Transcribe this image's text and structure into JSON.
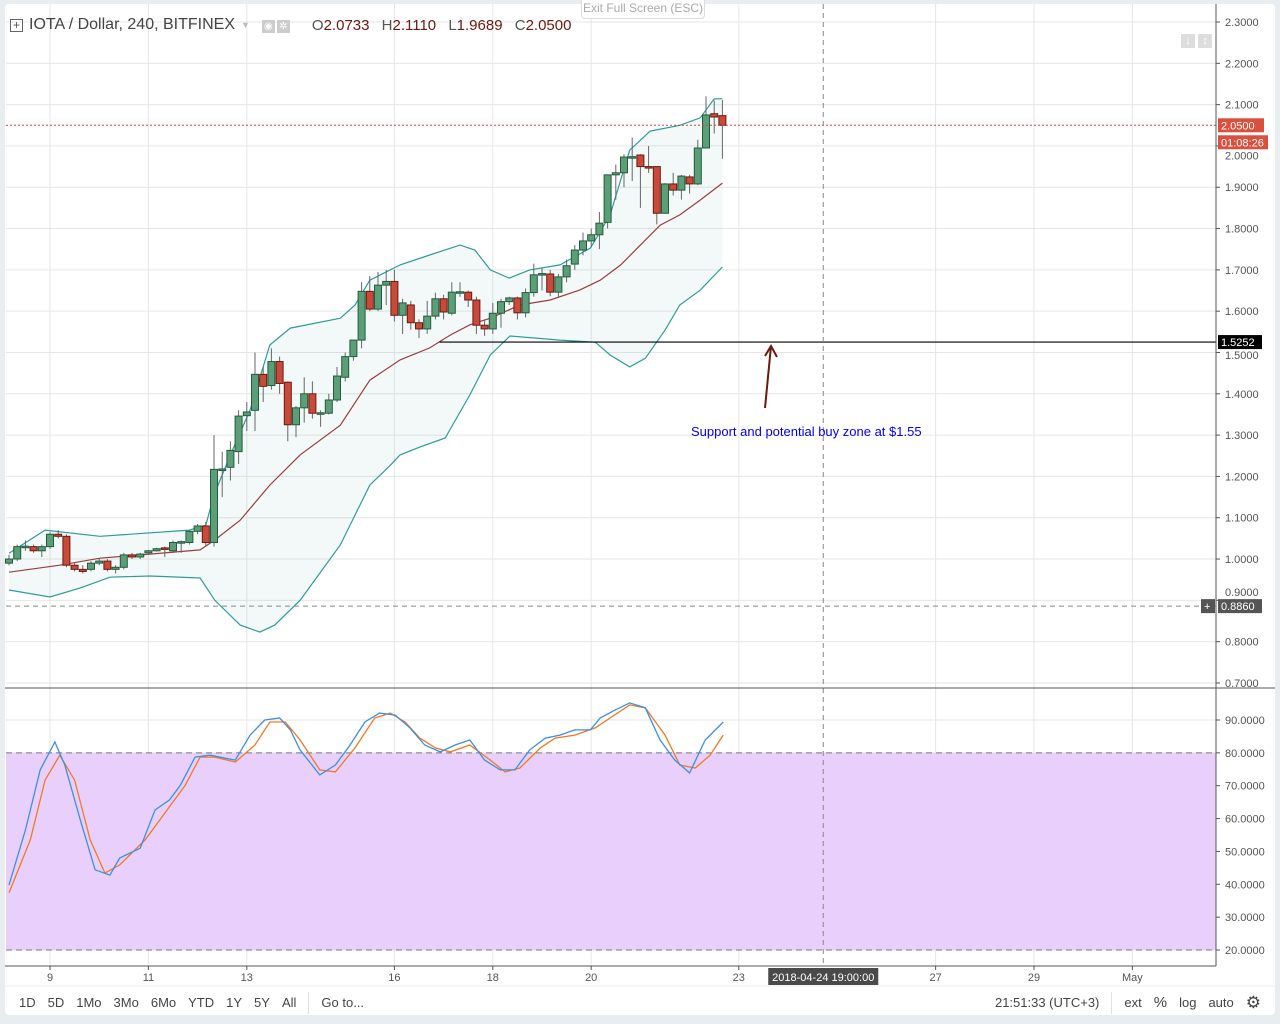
{
  "header": {
    "symbol": "IOTA / Dollar, 240, BITFINEX",
    "o_label": "O",
    "o": "2.0733",
    "h_label": "H",
    "h": "2.1110",
    "l_label": "L",
    "l": "1.9689",
    "c_label": "C",
    "c": "2.0500"
  },
  "exit_fullscreen": "Exit Full Screen (ESC)",
  "annotation": "Support and potential buy zone at $1.55",
  "price_labels": {
    "last": "2.0500",
    "countdown": "01:08:26",
    "support": "1.5252",
    "crosshair": "0.8860",
    "crosshair_plus": "+"
  },
  "colors": {
    "up": "#5b9e77",
    "down": "#c94a3a",
    "band": "#2e9c9a",
    "basis": "#9b3d3d",
    "stoch_k": "#3d8ee8",
    "stoch_d": "#f07a20",
    "stoch_fill": "#e9d0fc",
    "annotation": "#0000ff",
    "arrow": "#6b1a10"
  },
  "toolbar": {
    "ranges": [
      "1D",
      "5D",
      "1Mo",
      "3Mo",
      "6Mo",
      "YTD",
      "1Y",
      "5Y",
      "All"
    ],
    "goto": "Go to...",
    "clock": "21:51:33 (UTC+3)",
    "ext": "ext",
    "percent": "%",
    "log": "log",
    "auto": "auto"
  },
  "chart_data": {
    "type": "candlestick",
    "title": "IOTA / Dollar, 240, BITFINEX",
    "ylim": [
      0.7,
      2.3
    ],
    "y_ticks": [
      "2.3000",
      "2.2000",
      "2.1000",
      "2.0000",
      "1.9000",
      "1.8000",
      "1.7000",
      "1.6000",
      "1.5000",
      "1.4000",
      "1.3000",
      "1.2000",
      "1.1000",
      "1.0000",
      "0.9000",
      "0.8000",
      "0.7000"
    ],
    "x_ticks": [
      {
        "bar": 5,
        "label": "9"
      },
      {
        "bar": 17,
        "label": "11"
      },
      {
        "bar": 29,
        "label": "13"
      },
      {
        "bar": 47,
        "label": "16"
      },
      {
        "bar": 59,
        "label": "18"
      },
      {
        "bar": 71,
        "label": "20"
      },
      {
        "bar": 89,
        "label": "23"
      },
      {
        "bar": 113,
        "label": "27"
      },
      {
        "bar": 125,
        "label": "29"
      },
      {
        "bar": 137,
        "label": "May"
      }
    ],
    "crosshair": {
      "bar": 99.3,
      "price": 0.886,
      "date_label": "2018-04-24 19:00:00"
    },
    "support_line": {
      "price": 1.5252,
      "from_bar": 52.5
    },
    "ohlc": [
      [
        0.99,
        1.01,
        0.985,
        1.0
      ],
      [
        1.0,
        1.035,
        0.995,
        1.03
      ],
      [
        1.03,
        1.045,
        1.02,
        1.031
      ],
      [
        1.03,
        1.035,
        1.015,
        1.02
      ],
      [
        1.02,
        1.035,
        1.005,
        1.03
      ],
      [
        1.03,
        1.065,
        1.025,
        1.06
      ],
      [
        1.06,
        1.07,
        1.05,
        1.055
      ],
      [
        1.055,
        1.06,
        0.98,
        0.985
      ],
      [
        0.985,
        0.99,
        0.97,
        0.975
      ],
      [
        0.975,
        0.985,
        0.965,
        0.97
      ],
      [
        0.975,
        0.995,
        0.97,
        0.99
      ],
      [
        0.99,
        1.0,
        0.985,
        0.995
      ],
      [
        0.995,
        1.0,
        0.97,
        0.975
      ],
      [
        0.975,
        0.985,
        0.965,
        0.98
      ],
      [
        0.98,
        1.015,
        0.975,
        1.01
      ],
      [
        1.01,
        1.015,
        1.0,
        1.005
      ],
      [
        1.005,
        1.015,
        1.0,
        1.012
      ],
      [
        1.015,
        1.022,
        1.01,
        1.02
      ],
      [
        1.02,
        1.027,
        1.018,
        1.025
      ],
      [
        1.027,
        1.03,
        1.005,
        1.025
      ],
      [
        1.02,
        1.045,
        1.015,
        1.04
      ],
      [
        1.04,
        1.045,
        1.015,
        1.042
      ],
      [
        1.04,
        1.07,
        1.035,
        1.067
      ],
      [
        1.067,
        1.085,
        1.06,
        1.08
      ],
      [
        1.08,
        1.09,
        1.03,
        1.04
      ],
      [
        1.04,
        1.3,
        1.03,
        1.217
      ],
      [
        1.218,
        1.26,
        1.15,
        1.218
      ],
      [
        1.222,
        1.285,
        1.19,
        1.263
      ],
      [
        1.26,
        1.36,
        1.23,
        1.346
      ],
      [
        1.347,
        1.38,
        1.31,
        1.356
      ],
      [
        1.36,
        1.5,
        1.31,
        1.447
      ],
      [
        1.447,
        1.465,
        1.38,
        1.418
      ],
      [
        1.42,
        1.51,
        1.41,
        1.478
      ],
      [
        1.478,
        1.49,
        1.4,
        1.425
      ],
      [
        1.428,
        1.43,
        1.285,
        1.325
      ],
      [
        1.325,
        1.37,
        1.295,
        1.366
      ],
      [
        1.366,
        1.44,
        1.33,
        1.4
      ],
      [
        1.4,
        1.43,
        1.34,
        1.353
      ],
      [
        1.353,
        1.36,
        1.32,
        1.354
      ],
      [
        1.353,
        1.4,
        1.35,
        1.385
      ],
      [
        1.385,
        1.465,
        1.38,
        1.443
      ],
      [
        1.44,
        1.5,
        1.43,
        1.49
      ],
      [
        1.49,
        1.53,
        1.48,
        1.53
      ],
      [
        1.53,
        1.67,
        1.51,
        1.648
      ],
      [
        1.648,
        1.685,
        1.6,
        1.605
      ],
      [
        1.605,
        1.695,
        1.6,
        1.663
      ],
      [
        1.663,
        1.7,
        1.615,
        1.672
      ],
      [
        1.672,
        1.7,
        1.575,
        1.59
      ],
      [
        1.59,
        1.63,
        1.545,
        1.62
      ],
      [
        1.615,
        1.625,
        1.555,
        1.572
      ],
      [
        1.572,
        1.58,
        1.535,
        1.557
      ],
      [
        1.557,
        1.625,
        1.545,
        1.588
      ],
      [
        1.588,
        1.645,
        1.58,
        1.63
      ],
      [
        1.63,
        1.64,
        1.58,
        1.598
      ],
      [
        1.595,
        1.67,
        1.59,
        1.646
      ],
      [
        1.646,
        1.67,
        1.635,
        1.647
      ],
      [
        1.646,
        1.65,
        1.61,
        1.627
      ],
      [
        1.627,
        1.635,
        1.545,
        1.566
      ],
      [
        1.566,
        1.58,
        1.54,
        1.557
      ],
      [
        1.557,
        1.62,
        1.545,
        1.595
      ],
      [
        1.595,
        1.63,
        1.56,
        1.623
      ],
      [
        1.623,
        1.635,
        1.615,
        1.632
      ],
      [
        1.632,
        1.635,
        1.58,
        1.596
      ],
      [
        1.596,
        1.655,
        1.585,
        1.645
      ],
      [
        1.645,
        1.715,
        1.635,
        1.688
      ],
      [
        1.69,
        1.705,
        1.65,
        1.691
      ],
      [
        1.69,
        1.7,
        1.636,
        1.646
      ],
      [
        1.646,
        1.69,
        1.635,
        1.683
      ],
      [
        1.683,
        1.725,
        1.67,
        1.71
      ],
      [
        1.714,
        1.76,
        1.7,
        1.748
      ],
      [
        1.748,
        1.79,
        1.735,
        1.77
      ],
      [
        1.77,
        1.8,
        1.755,
        1.785
      ],
      [
        1.785,
        1.84,
        1.75,
        1.813
      ],
      [
        1.815,
        1.93,
        1.8,
        1.93
      ],
      [
        1.93,
        1.955,
        1.87,
        1.935
      ],
      [
        1.935,
        1.98,
        1.9,
        1.973
      ],
      [
        1.973,
        2.02,
        1.915,
        1.974
      ],
      [
        1.978,
        1.98,
        1.85,
        1.95
      ],
      [
        1.95,
        2.0,
        1.935,
        1.949
      ],
      [
        1.95,
        1.95,
        1.81,
        1.837
      ],
      [
        1.837,
        1.91,
        1.837,
        1.908
      ],
      [
        1.908,
        1.935,
        1.88,
        1.893
      ],
      [
        1.893,
        1.93,
        1.87,
        1.927
      ],
      [
        1.925,
        1.93,
        1.885,
        1.908
      ],
      [
        1.908,
        2.015,
        1.905,
        1.995
      ],
      [
        1.995,
        2.12,
        1.995,
        2.075
      ],
      [
        2.078,
        2.11,
        2.03,
        2.07
      ],
      [
        2.0733,
        2.111,
        1.9689,
        2.05
      ]
    ],
    "bollinger": {
      "upper": [
        [
          0,
          1.014
        ],
        [
          4.4,
          1.07
        ],
        [
          11.1,
          1.055
        ],
        [
          22,
          1.07
        ],
        [
          24,
          1.082
        ],
        [
          25,
          1.155
        ],
        [
          27,
          1.252
        ],
        [
          29.4,
          1.361
        ],
        [
          31.8,
          1.518
        ],
        [
          34.3,
          1.559
        ],
        [
          40.4,
          1.583
        ],
        [
          42.2,
          1.615
        ],
        [
          44,
          1.675
        ],
        [
          47.7,
          1.712
        ],
        [
          51.3,
          1.736
        ],
        [
          55,
          1.76
        ],
        [
          56.8,
          1.748
        ],
        [
          58.7,
          1.7
        ],
        [
          61,
          1.68
        ],
        [
          63.5,
          1.7
        ],
        [
          67.2,
          1.712
        ],
        [
          70.9,
          1.753
        ],
        [
          73.3,
          1.833
        ],
        [
          75.7,
          1.99
        ],
        [
          78.2,
          2.036
        ],
        [
          81.8,
          2.05
        ],
        [
          84.3,
          2.068
        ],
        [
          86,
          2.114
        ],
        [
          87,
          2.114
        ]
      ],
      "basis": [
        [
          0,
          0.968
        ],
        [
          6.2,
          0.985
        ],
        [
          11.1,
          1.002
        ],
        [
          17.2,
          1.012
        ],
        [
          23.3,
          1.022
        ],
        [
          25.1,
          1.046
        ],
        [
          28.2,
          1.094
        ],
        [
          31.8,
          1.179
        ],
        [
          35.5,
          1.252
        ],
        [
          40.4,
          1.324
        ],
        [
          44,
          1.433
        ],
        [
          47.7,
          1.482
        ],
        [
          51.3,
          1.511
        ],
        [
          53.8,
          1.542
        ],
        [
          56.2,
          1.567
        ],
        [
          58.7,
          1.583
        ],
        [
          62.3,
          1.615
        ],
        [
          66,
          1.627
        ],
        [
          69.6,
          1.651
        ],
        [
          72.1,
          1.675
        ],
        [
          74.6,
          1.712
        ],
        [
          77,
          1.76
        ],
        [
          79.4,
          1.808
        ],
        [
          81.8,
          1.833
        ],
        [
          84.3,
          1.869
        ],
        [
          87,
          1.91
        ]
      ],
      "lower": [
        [
          0,
          0.925
        ],
        [
          5,
          0.908
        ],
        [
          8.7,
          0.93
        ],
        [
          12.3,
          0.956
        ],
        [
          17.2,
          0.959
        ],
        [
          23.3,
          0.954
        ],
        [
          25.1,
          0.9
        ],
        [
          28.2,
          0.84
        ],
        [
          30.6,
          0.823
        ],
        [
          32.4,
          0.84
        ],
        [
          35.5,
          0.9
        ],
        [
          40.4,
          1.034
        ],
        [
          44,
          1.179
        ],
        [
          46.5,
          1.227
        ],
        [
          47.7,
          1.252
        ],
        [
          50.1,
          1.271
        ],
        [
          53.2,
          1.293
        ],
        [
          56.2,
          1.397
        ],
        [
          58.7,
          1.494
        ],
        [
          61.1,
          1.54
        ],
        [
          67.2,
          1.53
        ],
        [
          71.5,
          1.525
        ],
        [
          73.3,
          1.494
        ],
        [
          75.7,
          1.465
        ],
        [
          77.6,
          1.486
        ],
        [
          80,
          1.554
        ],
        [
          81.8,
          1.615
        ],
        [
          84.3,
          1.651
        ],
        [
          87,
          1.707
        ]
      ]
    },
    "stochastic": {
      "ylim": [
        15,
        100
      ],
      "y_ticks": [
        "90.0000",
        "80.0000",
        "70.0000",
        "60.0000",
        "50.0000",
        "40.0000",
        "30.0000",
        "20.0000"
      ],
      "upper_band": 80,
      "lower_band": 20,
      "k": [
        [
          0,
          39.8
        ],
        [
          2,
          56.5
        ],
        [
          3.8,
          74.8
        ],
        [
          5.6,
          83.3
        ],
        [
          6.8,
          76.3
        ],
        [
          8.7,
          59.6
        ],
        [
          10.5,
          44.4
        ],
        [
          12.3,
          42.8
        ],
        [
          13.5,
          48.0
        ],
        [
          16,
          51.0
        ],
        [
          17.8,
          62.6
        ],
        [
          19.6,
          65.7
        ],
        [
          20.9,
          70.2
        ],
        [
          22.7,
          78.7
        ],
        [
          24.5,
          79.3
        ],
        [
          27.6,
          77.8
        ],
        [
          29.4,
          85.4
        ],
        [
          31.2,
          90.0
        ],
        [
          33,
          90.6
        ],
        [
          34.3,
          87.0
        ],
        [
          35.5,
          80.9
        ],
        [
          37.9,
          73.3
        ],
        [
          39.8,
          76.3
        ],
        [
          41.6,
          82.4
        ],
        [
          43.4,
          89.4
        ],
        [
          45.2,
          92.1
        ],
        [
          47.1,
          91.5
        ],
        [
          48.9,
          87.6
        ],
        [
          50.7,
          82.4
        ],
        [
          52.6,
          80.3
        ],
        [
          54.4,
          82.4
        ],
        [
          56.2,
          83.9
        ],
        [
          58,
          77.8
        ],
        [
          59.9,
          74.8
        ],
        [
          61.7,
          74.8
        ],
        [
          63.5,
          80.9
        ],
        [
          65.4,
          84.5
        ],
        [
          67.2,
          85.4
        ],
        [
          69,
          87.0
        ],
        [
          70.9,
          87.0
        ],
        [
          72.1,
          90.6
        ],
        [
          73.9,
          93.0
        ],
        [
          75.7,
          95.2
        ],
        [
          77.6,
          93.7
        ],
        [
          79.4,
          83.9
        ],
        [
          81.2,
          77.8
        ],
        [
          83,
          73.9
        ],
        [
          84.9,
          83.9
        ],
        [
          87.1,
          89.4
        ]
      ],
      "d": [
        [
          0,
          37.4
        ],
        [
          2.6,
          53.5
        ],
        [
          4.4,
          71.7
        ],
        [
          6.2,
          79.3
        ],
        [
          8,
          71.7
        ],
        [
          9.9,
          53.5
        ],
        [
          11.7,
          43.4
        ],
        [
          13.5,
          45.9
        ],
        [
          16.6,
          53.5
        ],
        [
          18.4,
          59.6
        ],
        [
          21.5,
          70.2
        ],
        [
          23.3,
          78.7
        ],
        [
          25.1,
          78.7
        ],
        [
          27.6,
          77.2
        ],
        [
          30,
          82.4
        ],
        [
          31.8,
          89.4
        ],
        [
          33.7,
          89.4
        ],
        [
          35.5,
          83.9
        ],
        [
          37.9,
          74.8
        ],
        [
          39.8,
          74.2
        ],
        [
          42.2,
          81.5
        ],
        [
          44.6,
          90.6
        ],
        [
          46.5,
          92.1
        ],
        [
          48.3,
          89.4
        ],
        [
          50.1,
          84.5
        ],
        [
          52,
          81.5
        ],
        [
          53.8,
          80.3
        ],
        [
          56.2,
          82.4
        ],
        [
          58.7,
          77.8
        ],
        [
          60.5,
          74.2
        ],
        [
          62.3,
          75.4
        ],
        [
          64.8,
          81.5
        ],
        [
          66.6,
          84.5
        ],
        [
          69,
          85.4
        ],
        [
          71.5,
          87.6
        ],
        [
          73.3,
          90.6
        ],
        [
          75.7,
          94.6
        ],
        [
          77.6,
          93.7
        ],
        [
          80,
          85.4
        ],
        [
          81.8,
          76.3
        ],
        [
          83.7,
          75.4
        ],
        [
          85.5,
          79.3
        ],
        [
          87.1,
          85.4
        ]
      ]
    }
  }
}
